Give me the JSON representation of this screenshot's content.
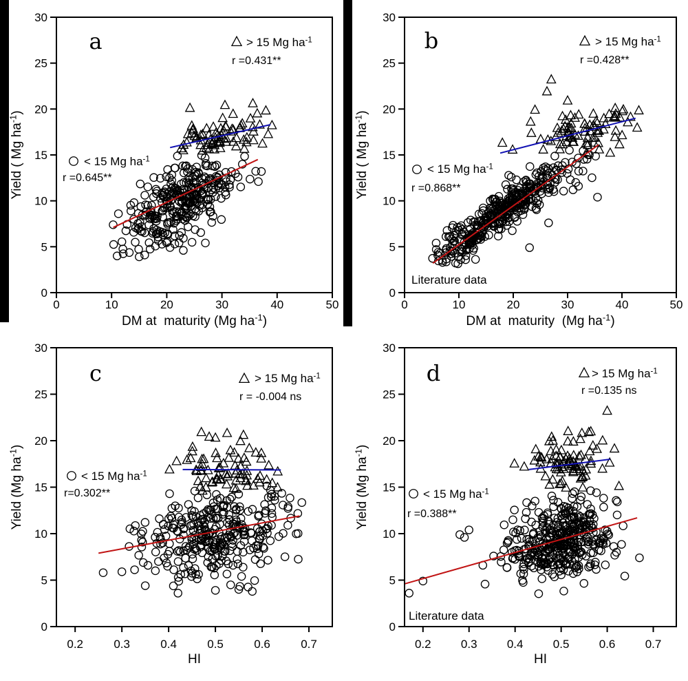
{
  "figure": {
    "background": "#ffffff",
    "marker_color": "#000000",
    "axis_color": "#000000",
    "trend_color_high": "#1212b4",
    "trend_color_low": "#c11414",
    "artifact_bar_color": "#000000"
  },
  "chart_data": [
    {
      "id": "a",
      "type": "scatter",
      "panel_label": "a",
      "xlabel": "DM at  maturity (Mg ha^-1^)",
      "ylabel": "Yield ( Mg ha^-1^)",
      "xlim": [
        0,
        50
      ],
      "ylim": [
        0,
        30
      ],
      "xticks": {
        "values": [
          0,
          10,
          20,
          30,
          40,
          50
        ],
        "labels": [
          "0",
          "10",
          "20",
          "30",
          "40",
          "50"
        ]
      },
      "yticks": {
        "values": [
          0,
          5,
          10,
          15,
          20,
          25,
          30
        ],
        "labels": [
          "0",
          "5",
          "10",
          "15",
          "20",
          "25",
          "30"
        ]
      },
      "note": null,
      "series": [
        {
          "name": "> 15 Mg ha^-1^",
          "marker": "triangle",
          "r_label": "r =0.431**",
          "n": 72,
          "seed": 7,
          "x_dist": {
            "mean": 30,
            "sd": 4.3,
            "min": 20.5,
            "max": 39.2
          },
          "y_model": {
            "intercept": 12.2,
            "slope": 0.155,
            "noise_sd": 1.15,
            "min": 15.2,
            "max": 20.8
          },
          "extra_points": [
            [
              24.2,
              20.1
            ],
            [
              35.6,
              20.6
            ],
            [
              36.4,
              19.5
            ]
          ],
          "trend": {
            "x": [
              20.6,
              38.8
            ],
            "y": [
              15.8,
              18.3
            ],
            "color": "#1212b4"
          }
        },
        {
          "name": "< 15 Mg ha^-1^",
          "marker": "circle",
          "r_label": "r =0.645**",
          "n": 320,
          "seed": 8,
          "x_dist": {
            "mean": 22.5,
            "sd": 5.3,
            "min": 10,
            "max": 39.5
          },
          "y_model": {
            "intercept": 2.8,
            "slope": 0.32,
            "noise_sd": 1.9,
            "min": 3.2,
            "max": 15.0
          },
          "extra_points": [
            [
              11,
              4.0
            ],
            [
              15,
              3.9
            ],
            [
              16,
              4.1
            ],
            [
              23,
              4.6
            ],
            [
              13.5,
              8.9
            ]
          ],
          "trend": {
            "x": [
              10.3,
              36.5
            ],
            "y": [
              7.1,
              14.5
            ],
            "color": "#c11414"
          }
        }
      ]
    },
    {
      "id": "b",
      "type": "scatter",
      "panel_label": "b",
      "xlabel": "DM at  maturity  (Mg ha^-1^)",
      "ylabel": "Yield ( Mg ha^-1^)",
      "xlim": [
        0,
        50
      ],
      "ylim": [
        0,
        30
      ],
      "xticks": {
        "values": [
          0,
          10,
          20,
          30,
          40,
          50
        ],
        "labels": [
          "0",
          "10",
          "20",
          "30",
          "40",
          "50"
        ]
      },
      "yticks": {
        "values": [
          0,
          5,
          10,
          15,
          20,
          25,
          30
        ],
        "labels": [
          "0",
          "5",
          "10",
          "15",
          "20",
          "25",
          "30"
        ]
      },
      "note": "Literature data",
      "series": [
        {
          "name": "> 15 Mg ha^-1^",
          "marker": "triangle",
          "r_label": "r =0.428**",
          "n": 80,
          "seed": 9,
          "x_dist": {
            "mean": 33,
            "sd": 5.5,
            "min": 17.5,
            "max": 43.5
          },
          "y_model": {
            "intercept": 12.6,
            "slope": 0.15,
            "noise_sd": 1.2,
            "min": 15.0,
            "max": 21.3
          },
          "extra_points": [
            [
              27,
              23.2
            ],
            [
              26.2,
              21.9
            ],
            [
              24,
              19.9
            ],
            [
              23.2,
              18.6
            ],
            [
              18,
              16.3
            ],
            [
              30,
              20.9
            ]
          ],
          "trend": {
            "x": [
              17.6,
              42.5
            ],
            "y": [
              15.2,
              19.0
            ],
            "color": "#1212b4"
          }
        },
        {
          "name": "< 15 Mg ha^-1^",
          "marker": "circle",
          "r_label": "r =0.868**",
          "n": 400,
          "seed": 10,
          "x_dist": {
            "mean": 18,
            "sd": 6.6,
            "min": 5,
            "max": 36
          },
          "y_model": {
            "intercept": 1.2,
            "slope": 0.42,
            "noise_sd": 1.05,
            "min": 3.0,
            "max": 16.2
          },
          "extra_points": [
            [
              30.5,
              12.3
            ],
            [
              31.5,
              12.0
            ],
            [
              32,
              11.6
            ],
            [
              31,
              11.2
            ],
            [
              35.5,
              10.4
            ],
            [
              23,
              4.9
            ],
            [
              26.5,
              7.6
            ],
            [
              10.5,
              6.3
            ]
          ],
          "trend": {
            "x": [
              5.2,
              35.7
            ],
            "y": [
              3.2,
              16.1
            ],
            "color": "#c11414"
          }
        }
      ]
    },
    {
      "id": "c",
      "type": "scatter",
      "panel_label": "c",
      "xlabel": "HI",
      "ylabel": "Yield (Mg ha^-1^)",
      "xlim": [
        0.16,
        0.75
      ],
      "ylim": [
        0,
        30
      ],
      "xticks": {
        "values": [
          0.2,
          0.3,
          0.4,
          0.5,
          0.6,
          0.7
        ],
        "labels": [
          "0.2",
          "0.3",
          "0.4",
          "0.5",
          "0.6",
          "0.7"
        ]
      },
      "yticks": {
        "values": [
          0,
          5,
          10,
          15,
          20,
          25,
          30
        ],
        "labels": [
          "0",
          "5",
          "10",
          "15",
          "20",
          "25",
          "30"
        ]
      },
      "note": null,
      "series": [
        {
          "name": "> 15 Mg ha^-1^",
          "marker": "triangle",
          "r_label": "r = -0.004 ns",
          "n": 72,
          "seed": 11,
          "x_dist": {
            "mean": 0.52,
            "sd": 0.05,
            "min": 0.38,
            "max": 0.655
          },
          "y_model": {
            "intercept": 16.9,
            "slope": 0,
            "noise_sd": 1.5,
            "min": 14.6,
            "max": 21.0
          },
          "extra_points": [
            [
              0.47,
              20.9
            ],
            [
              0.525,
              20.8
            ],
            [
              0.5,
              20.3
            ],
            [
              0.56,
              20.6
            ]
          ],
          "trend": {
            "x": [
              0.43,
              0.64
            ],
            "y": [
              16.9,
              16.85
            ],
            "color": "#1212b4"
          }
        },
        {
          "name": "< 15 Mg ha^-1^",
          "marker": "circle",
          "r_label": "r=0.302**",
          "n": 330,
          "seed": 12,
          "x_dist": {
            "mean": 0.5,
            "sd": 0.075,
            "min": 0.245,
            "max": 0.685
          },
          "y_model": {
            "intercept": 5.15,
            "slope": 9.5,
            "noise_sd": 2.3,
            "min": 3.4,
            "max": 15.2
          },
          "extra_points": [
            [
              0.42,
              3.6
            ],
            [
              0.5,
              3.9
            ],
            [
              0.35,
              4.4
            ],
            [
              0.55,
              4.0
            ],
            [
              0.3,
              5.9
            ],
            [
              0.26,
              5.8
            ]
          ],
          "trend": {
            "x": [
              0.25,
              0.68
            ],
            "y": [
              7.9,
              11.9
            ],
            "color": "#c11414"
          }
        }
      ]
    },
    {
      "id": "d",
      "type": "scatter",
      "panel_label": "d",
      "xlabel": "HI",
      "ylabel": "Yield (Mg ha^-1^)",
      "xlim": [
        0.16,
        0.75
      ],
      "ylim": [
        0,
        30
      ],
      "xticks": {
        "values": [
          0.2,
          0.3,
          0.4,
          0.5,
          0.6,
          0.7
        ],
        "labels": [
          "0.2",
          "0.3",
          "0.4",
          "0.5",
          "0.6",
          "0.7"
        ]
      },
      "yticks": {
        "values": [
          0,
          5,
          10,
          15,
          20,
          25,
          30
        ],
        "labels": [
          "0",
          "5",
          "10",
          "15",
          "20",
          "25",
          "30"
        ]
      },
      "note": "Literature data",
      "series": [
        {
          "name": "> 15 Mg ha^-1^",
          "marker": "triangle",
          "r_label": "r =0.135 ns",
          "n": 80,
          "seed": 13,
          "x_dist": {
            "mean": 0.51,
            "sd": 0.045,
            "min": 0.37,
            "max": 0.64
          },
          "y_model": {
            "intercept": 17.1,
            "slope": 0,
            "noise_sd": 1.5,
            "min": 14.8,
            "max": 21.3
          },
          "extra_points": [
            [
              0.6,
              23.2
            ],
            [
              0.56,
              20.9
            ],
            [
              0.59,
              20.0
            ],
            [
              0.545,
              20.8
            ],
            [
              0.515,
              21.0
            ]
          ],
          "trend": {
            "x": [
              0.43,
              0.606
            ],
            "y": [
              16.9,
              18.0
            ],
            "color": "#1212b4"
          }
        },
        {
          "name": "< 15 Mg ha^-1^",
          "marker": "circle",
          "r_label": "r =0.388**",
          "n": 400,
          "seed": 14,
          "x_dist": {
            "mean": 0.495,
            "sd": 0.058,
            "min": 0.17,
            "max": 0.68
          },
          "y_model": {
            "intercept": 3.7,
            "slope": 11,
            "noise_sd": 2.2,
            "min": 3.4,
            "max": 15.3
          },
          "extra_points": [
            [
              0.17,
              3.6
            ],
            [
              0.2,
              4.9
            ],
            [
              0.28,
              9.9
            ],
            [
              0.29,
              9.6
            ],
            [
              0.3,
              10.4
            ],
            [
              0.67,
              7.4
            ],
            [
              0.62,
              8.0
            ],
            [
              0.33,
              6.6
            ]
          ],
          "trend": {
            "x": [
              0.16,
              0.665
            ],
            "y": [
              4.6,
              11.7
            ],
            "color": "#c11414"
          }
        }
      ]
    }
  ]
}
